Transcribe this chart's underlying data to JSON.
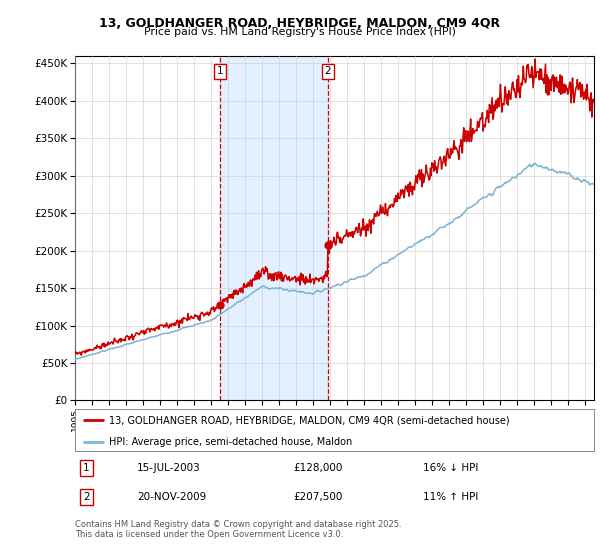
{
  "title_line1": "13, GOLDHANGER ROAD, HEYBRIDGE, MALDON, CM9 4QR",
  "title_line2": "Price paid vs. HM Land Registry's House Price Index (HPI)",
  "legend_line1": "13, GOLDHANGER ROAD, HEYBRIDGE, MALDON, CM9 4QR (semi-detached house)",
  "legend_line2": "HPI: Average price, semi-detached house, Maldon",
  "transaction1_date": "15-JUL-2003",
  "transaction1_price": "£128,000",
  "transaction1_hpi": "16% ↓ HPI",
  "transaction2_date": "20-NOV-2009",
  "transaction2_price": "£207,500",
  "transaction2_hpi": "11% ↑ HPI",
  "footer": "Contains HM Land Registry data © Crown copyright and database right 2025.\nThis data is licensed under the Open Government Licence v3.0.",
  "red_color": "#cc0000",
  "blue_color": "#7fb3d3",
  "vline_color": "#cc0000",
  "shading_color": "#ddeeff",
  "background_color": "#ffffff",
  "ylim_min": 0,
  "ylim_max": 460000,
  "xlim_min": 1995,
  "xlim_max": 2025.5,
  "t1_year": 2003.54,
  "t2_year": 2009.87,
  "p1": 128000,
  "p2": 207500
}
